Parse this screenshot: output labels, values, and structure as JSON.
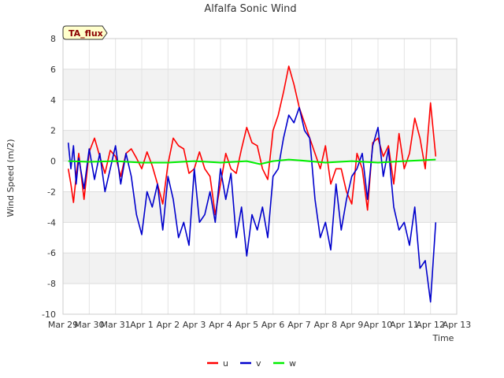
{
  "chart_data": {
    "type": "line",
    "title": "Alfalfa Sonic Wind",
    "xlabel": "Time",
    "ylabel": "Wind Speed (m/2)",
    "badge": "TA_flux",
    "ylim": [
      -10,
      8
    ],
    "yticks": [
      -10,
      -8,
      -6,
      -4,
      -2,
      0,
      2,
      4,
      6,
      8
    ],
    "xlim": [
      0,
      15
    ],
    "xticks": [
      0,
      1,
      2,
      3,
      4,
      5,
      6,
      7,
      8,
      9,
      10,
      11,
      12,
      13,
      14,
      15
    ],
    "xtick_labels": [
      "Mar 29",
      "Mar 30",
      "Mar 31",
      "Apr 1",
      "Apr 2",
      "Apr 3",
      "Apr 4",
      "Apr 5",
      "Apr 6",
      "Apr 7",
      "Apr 8",
      "Apr 9",
      "Apr 10",
      "Apr 11",
      "Apr 12",
      "Apr 13"
    ],
    "grid": true,
    "legend_position": "bottom",
    "series": [
      {
        "name": "u",
        "color": "#ff0000",
        "x": [
          0.2,
          0.3,
          0.4,
          0.5,
          0.6,
          0.8,
          1.0,
          1.2,
          1.4,
          1.6,
          1.8,
          2.0,
          2.2,
          2.4,
          2.6,
          2.8,
          3.0,
          3.2,
          3.4,
          3.6,
          3.8,
          4.0,
          4.2,
          4.4,
          4.6,
          4.8,
          5.0,
          5.2,
          5.4,
          5.6,
          5.8,
          6.0,
          6.2,
          6.4,
          6.6,
          6.8,
          7.0,
          7.2,
          7.4,
          7.6,
          7.8,
          8.0,
          8.2,
          8.4,
          8.6,
          8.8,
          9.0,
          9.2,
          9.4,
          9.6,
          9.8,
          10.0,
          10.2,
          10.4,
          10.6,
          10.8,
          11.0,
          11.2,
          11.4,
          11.6,
          11.8,
          12.0,
          12.2,
          12.4,
          12.6,
          12.8,
          13.0,
          13.2,
          13.4,
          13.6,
          13.8,
          14.0,
          14.2
        ],
        "values": [
          -0.5,
          -1.5,
          -2.7,
          -1.0,
          0.5,
          -2.5,
          0.6,
          1.5,
          0.3,
          -0.8,
          0.7,
          0.3,
          -1.0,
          0.5,
          0.8,
          0.2,
          -0.5,
          0.6,
          -0.3,
          -1.5,
          -2.8,
          -0.2,
          1.5,
          1.0,
          0.8,
          -0.8,
          -0.5,
          0.6,
          -0.5,
          -1.0,
          -3.5,
          -1.5,
          0.5,
          -0.5,
          -0.8,
          0.8,
          2.2,
          1.2,
          1.0,
          -0.5,
          -1.2,
          2.0,
          3.0,
          4.5,
          6.2,
          5.0,
          3.5,
          2.5,
          1.5,
          0.5,
          -0.5,
          1.0,
          -1.5,
          -0.5,
          -0.5,
          -2.0,
          -2.8,
          0.5,
          -0.5,
          -3.2,
          1.2,
          1.5,
          0.3,
          1.0,
          -1.5,
          1.8,
          -0.5,
          0.5,
          2.8,
          1.5,
          -0.5,
          3.8,
          0.3
        ]
      },
      {
        "name": "v",
        "color": "#0000cc",
        "x": [
          0.2,
          0.3,
          0.4,
          0.5,
          0.6,
          0.8,
          1.0,
          1.2,
          1.4,
          1.6,
          1.8,
          2.0,
          2.2,
          2.4,
          2.6,
          2.8,
          3.0,
          3.2,
          3.4,
          3.6,
          3.8,
          4.0,
          4.2,
          4.4,
          4.6,
          4.8,
          5.0,
          5.2,
          5.4,
          5.6,
          5.8,
          6.0,
          6.2,
          6.4,
          6.6,
          6.8,
          7.0,
          7.2,
          7.4,
          7.6,
          7.8,
          8.0,
          8.2,
          8.4,
          8.6,
          8.8,
          9.0,
          9.2,
          9.4,
          9.6,
          9.8,
          10.0,
          10.2,
          10.4,
          10.6,
          10.8,
          11.0,
          11.2,
          11.4,
          11.6,
          11.8,
          12.0,
          12.2,
          12.4,
          12.6,
          12.8,
          13.0,
          13.2,
          13.4,
          13.6,
          13.8,
          14.0,
          14.2
        ],
        "values": [
          1.2,
          -0.5,
          1.0,
          -1.5,
          0.2,
          -1.8,
          0.8,
          -1.2,
          0.5,
          -2.0,
          -0.5,
          1.0,
          -1.5,
          0.5,
          -1.0,
          -3.5,
          -4.8,
          -2.0,
          -3.0,
          -1.5,
          -4.5,
          -1.0,
          -2.5,
          -5.0,
          -4.0,
          -5.5,
          -0.5,
          -4.0,
          -3.5,
          -2.0,
          -4.0,
          -0.5,
          -2.5,
          -0.8,
          -5.0,
          -3.0,
          -6.2,
          -3.5,
          -4.5,
          -3.0,
          -5.0,
          -1.0,
          -0.5,
          1.5,
          3.0,
          2.5,
          3.5,
          2.0,
          1.5,
          -2.5,
          -5.0,
          -4.0,
          -5.8,
          -1.5,
          -4.5,
          -2.5,
          -1.0,
          -0.5,
          0.5,
          -2.5,
          1.0,
          2.2,
          -1.0,
          0.8,
          -3.0,
          -4.5,
          -4.0,
          -5.5,
          -3.0,
          -7.0,
          -6.5,
          -9.2,
          -4.0
        ]
      },
      {
        "name": "w",
        "color": "#00ee00",
        "x": [
          0.2,
          1.0,
          2.0,
          3.0,
          4.0,
          5.0,
          6.0,
          7.0,
          7.5,
          8.0,
          8.6,
          9.0,
          10.0,
          11.0,
          12.0,
          13.0,
          14.2
        ],
        "values": [
          0.0,
          -0.05,
          0.0,
          -0.1,
          -0.1,
          0.0,
          -0.1,
          0.0,
          -0.2,
          0.0,
          0.1,
          0.05,
          -0.1,
          0.0,
          -0.1,
          0.0,
          0.1
        ]
      }
    ]
  }
}
